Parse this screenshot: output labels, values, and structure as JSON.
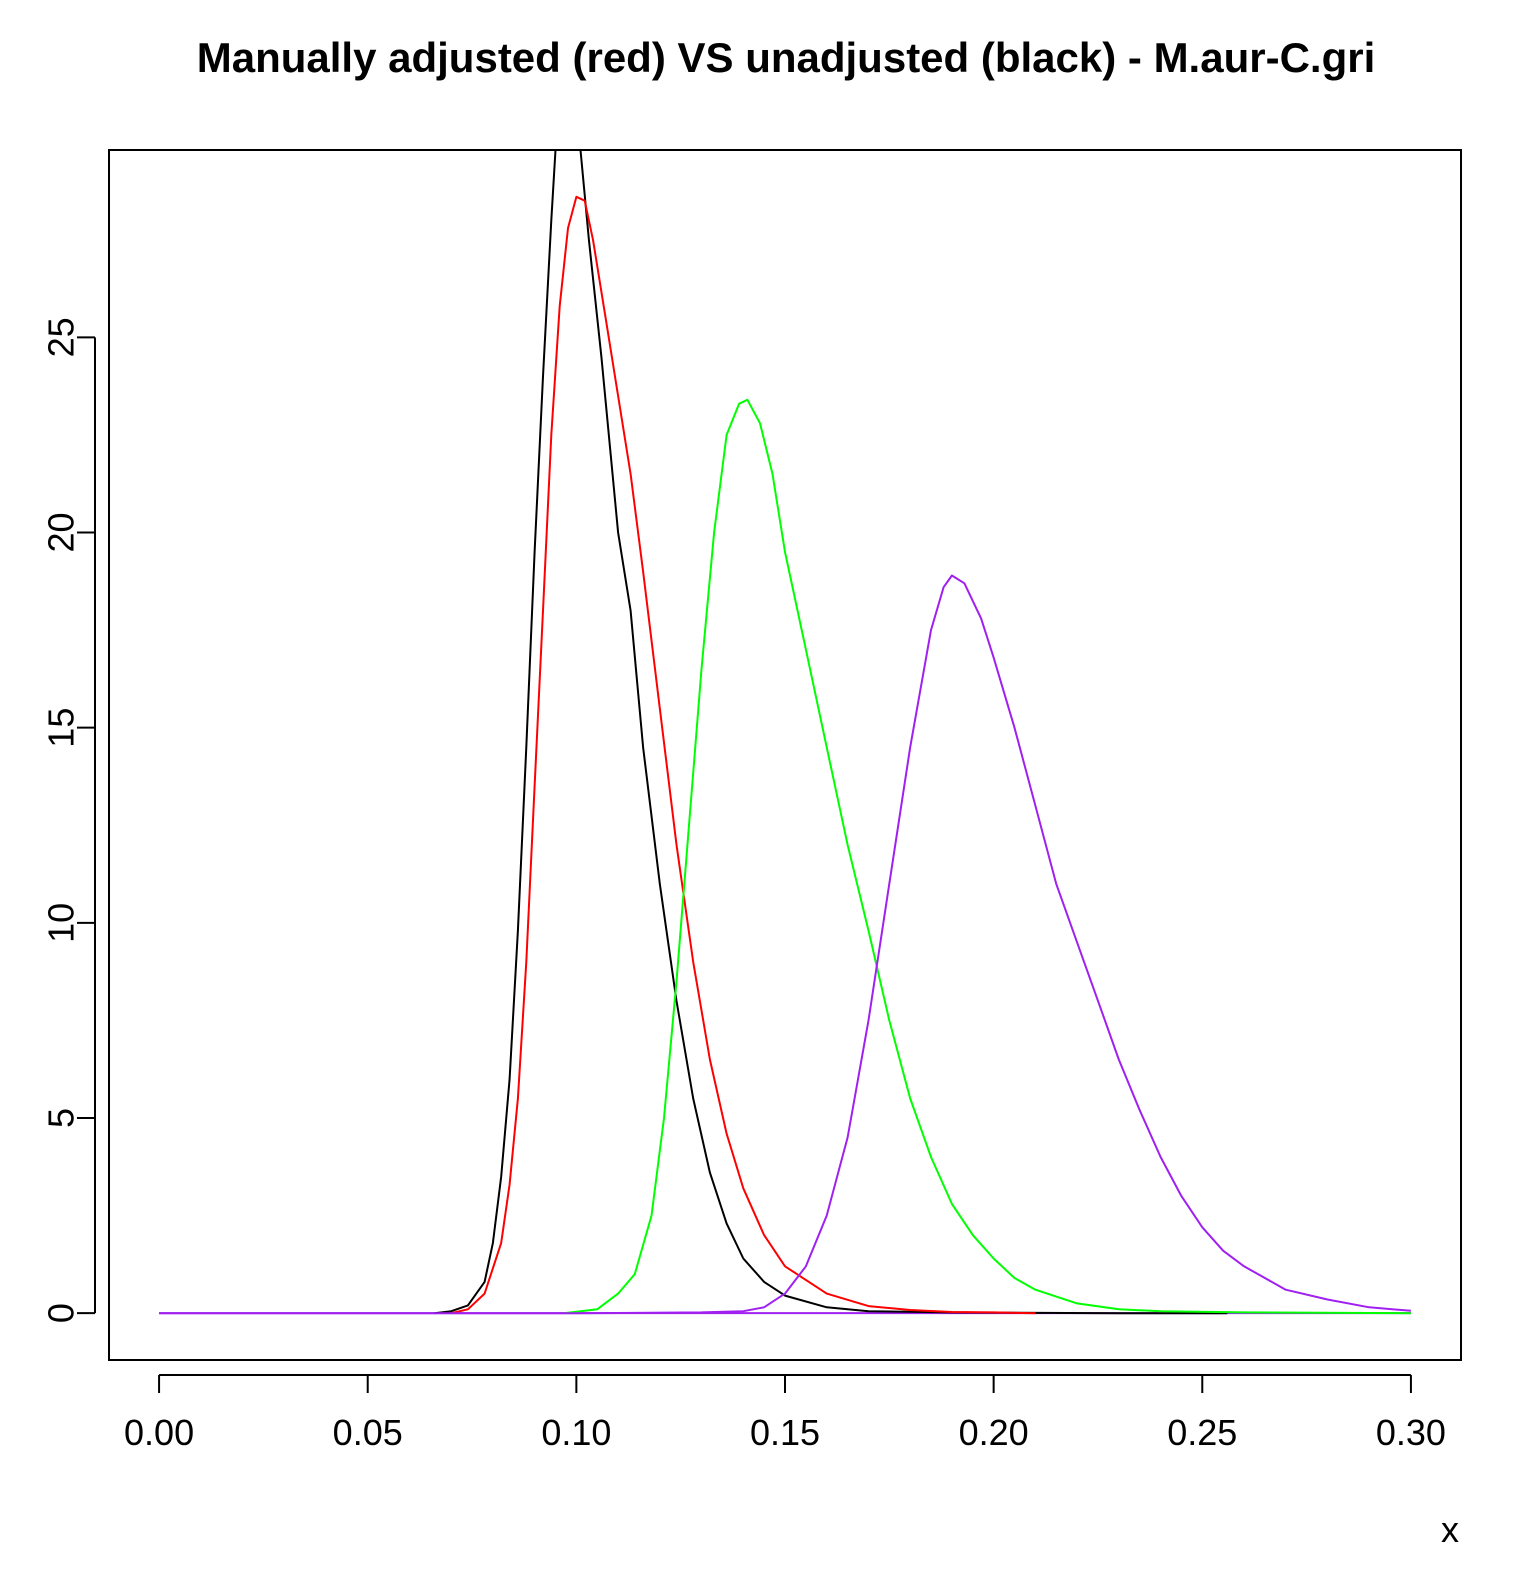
{
  "chart_data": {
    "type": "line",
    "title": "Manually adjusted (red) VS unadjusted (black) - M.aur-C.gri",
    "xlabel": "x",
    "ylabel": "",
    "xlim": [
      -0.012,
      0.312
    ],
    "ylim": [
      -1.2,
      29.8
    ],
    "x_ticks": [
      "0.00",
      "0.05",
      "0.10",
      "0.15",
      "0.20",
      "0.25",
      "0.30"
    ],
    "x_tick_values": [
      0.0,
      0.05,
      0.1,
      0.15,
      0.2,
      0.25,
      0.3
    ],
    "y_ticks": [
      "0",
      "5",
      "10",
      "15",
      "20",
      "25"
    ],
    "y_tick_values": [
      0,
      5,
      10,
      15,
      20,
      25
    ],
    "grid": false,
    "legend": "none",
    "series": [
      {
        "color": "#000000",
        "points": [
          [
            0.066,
            0.0
          ],
          [
            0.07,
            0.05
          ],
          [
            0.074,
            0.2
          ],
          [
            0.078,
            0.8
          ],
          [
            0.08,
            1.8
          ],
          [
            0.082,
            3.5
          ],
          [
            0.084,
            6.0
          ],
          [
            0.086,
            9.8
          ],
          [
            0.088,
            14.5
          ],
          [
            0.09,
            19.5
          ],
          [
            0.092,
            24.0
          ],
          [
            0.094,
            28.0
          ],
          [
            0.095,
            29.8
          ],
          [
            0.098,
            30.3
          ],
          [
            0.101,
            29.8
          ],
          [
            0.103,
            27.5
          ],
          [
            0.106,
            24.5
          ],
          [
            0.11,
            20.0
          ],
          [
            0.113,
            18.0
          ],
          [
            0.116,
            14.5
          ],
          [
            0.12,
            11.0
          ],
          [
            0.124,
            8.0
          ],
          [
            0.128,
            5.5
          ],
          [
            0.132,
            3.6
          ],
          [
            0.136,
            2.3
          ],
          [
            0.14,
            1.4
          ],
          [
            0.145,
            0.8
          ],
          [
            0.15,
            0.45
          ],
          [
            0.16,
            0.15
          ],
          [
            0.17,
            0.05
          ],
          [
            0.19,
            0.02
          ],
          [
            0.23,
            0.0
          ],
          [
            0.256,
            0.0
          ]
        ]
      },
      {
        "color": "#ff0000",
        "points": [
          [
            0.07,
            0.0
          ],
          [
            0.074,
            0.1
          ],
          [
            0.078,
            0.5
          ],
          [
            0.082,
            1.8
          ],
          [
            0.084,
            3.3
          ],
          [
            0.086,
            5.5
          ],
          [
            0.088,
            9.0
          ],
          [
            0.09,
            13.5
          ],
          [
            0.092,
            18.0
          ],
          [
            0.094,
            22.5
          ],
          [
            0.096,
            25.8
          ],
          [
            0.098,
            27.8
          ],
          [
            0.1,
            28.6
          ],
          [
            0.102,
            28.5
          ],
          [
            0.104,
            27.5
          ],
          [
            0.107,
            25.5
          ],
          [
            0.11,
            23.5
          ],
          [
            0.113,
            21.5
          ],
          [
            0.116,
            19.0
          ],
          [
            0.12,
            15.5
          ],
          [
            0.124,
            12.0
          ],
          [
            0.128,
            9.0
          ],
          [
            0.132,
            6.5
          ],
          [
            0.136,
            4.6
          ],
          [
            0.14,
            3.2
          ],
          [
            0.145,
            2.0
          ],
          [
            0.15,
            1.2
          ],
          [
            0.16,
            0.5
          ],
          [
            0.17,
            0.18
          ],
          [
            0.18,
            0.08
          ],
          [
            0.19,
            0.03
          ],
          [
            0.2,
            0.02
          ],
          [
            0.21,
            0.0
          ]
        ]
      },
      {
        "color": "#00ff00",
        "points": [
          [
            0.097,
            0.0
          ],
          [
            0.105,
            0.1
          ],
          [
            0.11,
            0.5
          ],
          [
            0.114,
            1.0
          ],
          [
            0.118,
            2.5
          ],
          [
            0.121,
            5.0
          ],
          [
            0.124,
            8.5
          ],
          [
            0.127,
            12.5
          ],
          [
            0.13,
            16.5
          ],
          [
            0.133,
            20.0
          ],
          [
            0.136,
            22.5
          ],
          [
            0.139,
            23.3
          ],
          [
            0.141,
            23.4
          ],
          [
            0.144,
            22.8
          ],
          [
            0.147,
            21.5
          ],
          [
            0.15,
            19.5
          ],
          [
            0.155,
            17.0
          ],
          [
            0.16,
            14.5
          ],
          [
            0.165,
            12.0
          ],
          [
            0.17,
            9.8
          ],
          [
            0.175,
            7.5
          ],
          [
            0.18,
            5.5
          ],
          [
            0.185,
            4.0
          ],
          [
            0.19,
            2.8
          ],
          [
            0.195,
            2.0
          ],
          [
            0.2,
            1.4
          ],
          [
            0.205,
            0.9
          ],
          [
            0.21,
            0.6
          ],
          [
            0.22,
            0.25
          ],
          [
            0.23,
            0.1
          ],
          [
            0.24,
            0.05
          ],
          [
            0.26,
            0.02
          ],
          [
            0.3,
            0.0
          ]
        ]
      },
      {
        "color": "#a020f0",
        "points": [
          [
            0.0,
            0.0
          ],
          [
            0.05,
            0.0
          ],
          [
            0.1,
            0.0
          ],
          [
            0.13,
            0.02
          ],
          [
            0.14,
            0.05
          ],
          [
            0.145,
            0.15
          ],
          [
            0.15,
            0.5
          ],
          [
            0.155,
            1.2
          ],
          [
            0.16,
            2.5
          ],
          [
            0.165,
            4.5
          ],
          [
            0.17,
            7.5
          ],
          [
            0.175,
            11.0
          ],
          [
            0.18,
            14.5
          ],
          [
            0.185,
            17.5
          ],
          [
            0.188,
            18.6
          ],
          [
            0.19,
            18.9
          ],
          [
            0.193,
            18.7
          ],
          [
            0.197,
            17.8
          ],
          [
            0.2,
            16.8
          ],
          [
            0.205,
            15.0
          ],
          [
            0.21,
            13.0
          ],
          [
            0.215,
            11.0
          ],
          [
            0.22,
            9.5
          ],
          [
            0.225,
            8.0
          ],
          [
            0.23,
            6.5
          ],
          [
            0.235,
            5.2
          ],
          [
            0.24,
            4.0
          ],
          [
            0.245,
            3.0
          ],
          [
            0.25,
            2.2
          ],
          [
            0.255,
            1.6
          ],
          [
            0.26,
            1.2
          ],
          [
            0.265,
            0.9
          ],
          [
            0.27,
            0.6
          ],
          [
            0.28,
            0.35
          ],
          [
            0.29,
            0.15
          ],
          [
            0.3,
            0.06
          ]
        ]
      }
    ]
  }
}
